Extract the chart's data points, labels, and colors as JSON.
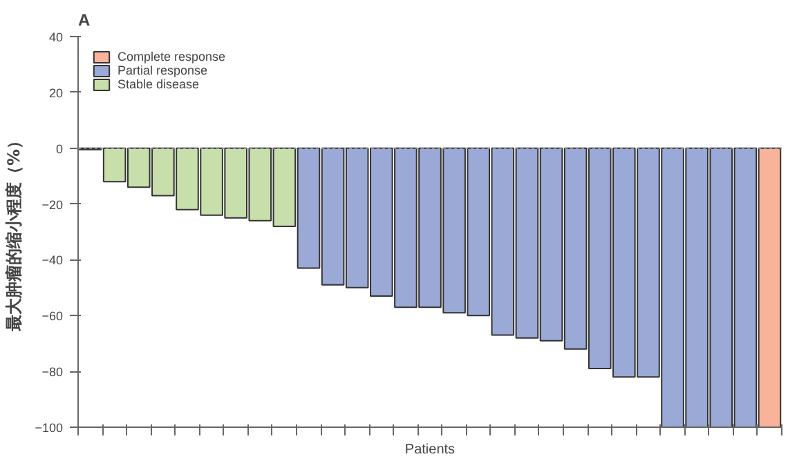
{
  "chart_data": {
    "type": "bar",
    "title": "A",
    "xlabel": "Patients",
    "ylabel": "最大肿瘤的缩小程度（%）",
    "categories": [
      null,
      null,
      null,
      null,
      null,
      null,
      null,
      null,
      null,
      null,
      null,
      null,
      null,
      null,
      null,
      null,
      null,
      null,
      null,
      null,
      null,
      null,
      null,
      null,
      null,
      null,
      null,
      null,
      null
    ],
    "stacked": true,
    "series": [
      {
        "name": "Complete response",
        "color": "#f8b49a",
        "values": [
          null,
          null,
          null,
          null,
          null,
          null,
          null,
          null,
          null,
          null,
          null,
          null,
          null,
          null,
          null,
          null,
          null,
          null,
          null,
          null,
          null,
          null,
          null,
          null,
          null,
          null,
          null,
          null,
          -100
        ]
      },
      {
        "name": "Partial response",
        "color": "#9aa9d6",
        "values": [
          null,
          null,
          null,
          null,
          null,
          null,
          null,
          null,
          null,
          -43,
          -49,
          -50,
          -53,
          -57,
          -57,
          -59,
          -60,
          -67,
          -68,
          -69,
          -72,
          -79,
          -82,
          -82,
          -100,
          -100,
          -100,
          -100,
          null
        ]
      },
      {
        "name": "Stable disease",
        "color": "#c8dfac",
        "values": [
          -0.5,
          -12,
          -14,
          -17,
          -22,
          -24,
          -25,
          -26,
          -28,
          null,
          null,
          null,
          null,
          null,
          null,
          null,
          null,
          null,
          null,
          null,
          null,
          null,
          null,
          null,
          null,
          null,
          null,
          null,
          null
        ]
      }
    ],
    "ylim": [
      -100,
      40
    ],
    "yticks": [
      -100,
      -80,
      -60,
      -40,
      -20,
      0,
      20,
      40
    ],
    "ref_lines": [
      {
        "axis": "y",
        "value": 0,
        "line_style": "dotted",
        "color": "#8a9aa8"
      }
    ],
    "grid": false,
    "legend": "top left"
  }
}
